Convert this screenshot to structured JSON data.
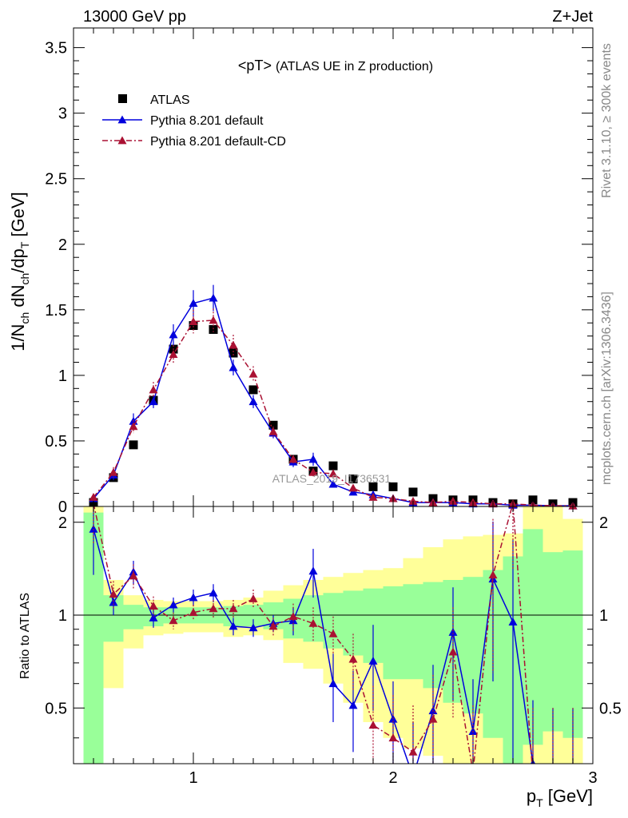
{
  "header": {
    "process": "13000 GeV pp",
    "channel": "Z+Jet",
    "side_top": "Rivet 3.1.10, ≥ 300k events",
    "side_bottom": "mcplots.cern.ch [arXiv:1306.3436]"
  },
  "chart_data": [
    {
      "type": "line",
      "title": "<pT> (ATLAS UE in Z production)",
      "title_main": "<pT>",
      "title_sub": "(ATLAS UE in Z production)",
      "watermark": "ATLAS_2019_I1736531",
      "ylabel": "1/N_ch dN_ch/dp_T [GeV]",
      "xlim": [
        0.4,
        3.0
      ],
      "ylim": [
        0,
        3.65
      ],
      "xticks": [
        "1",
        "2",
        "3"
      ],
      "yticks": [
        "0",
        "0.5",
        "1",
        "1.5",
        "2",
        "2.5",
        "3",
        "3.5"
      ],
      "legend_position": "top-left",
      "x": [
        0.5,
        0.6,
        0.7,
        0.8,
        0.9,
        1.0,
        1.1,
        1.2,
        1.3,
        1.4,
        1.5,
        1.6,
        1.7,
        1.8,
        1.9,
        2.0,
        2.1,
        2.2,
        2.3,
        2.4,
        2.5,
        2.6,
        2.7,
        2.8,
        2.9
      ],
      "series": [
        {
          "name": "ATLAS",
          "color": "#000000",
          "marker": "square",
          "values": [
            0.03,
            0.22,
            0.47,
            0.81,
            1.2,
            1.38,
            1.35,
            1.17,
            0.89,
            0.62,
            0.36,
            0.27,
            0.31,
            0.21,
            0.15,
            0.15,
            0.11,
            0.06,
            0.05,
            0.05,
            0.03,
            0.02,
            0.05,
            0.02,
            0.03
          ]
        },
        {
          "name": "Pythia 8.201 default",
          "color": "#0000dd",
          "marker": "triangle",
          "dash": "solid",
          "values": [
            0.06,
            0.24,
            0.65,
            0.8,
            1.31,
            1.55,
            1.59,
            1.06,
            0.8,
            0.56,
            0.34,
            0.36,
            0.17,
            0.11,
            0.09,
            0.06,
            0.03,
            0.03,
            0.03,
            0.02,
            0.02,
            0.01,
            0.01,
            0.005,
            0.005
          ],
          "errors": [
            0.02,
            0.04,
            0.06,
            0.05,
            0.08,
            0.1,
            0.1,
            0.06,
            0.05,
            0.04,
            0.04,
            0.05,
            0.02,
            0.02,
            0.02,
            0.02,
            0.01,
            0.01,
            0.01,
            0.01,
            0.01,
            0.01,
            0.01,
            0.005,
            0.005
          ]
        },
        {
          "name": "Pythia 8.201 default-CD",
          "color": "#aa1133",
          "marker": "triangle",
          "dash": "dashdot",
          "values": [
            0.07,
            0.26,
            0.61,
            0.89,
            1.16,
            1.41,
            1.42,
            1.23,
            1.01,
            0.57,
            0.36,
            0.26,
            0.25,
            0.14,
            0.07,
            0.06,
            0.04,
            0.03,
            0.04,
            0.03,
            0.02,
            0.02,
            0.01,
            0.005,
            0.005
          ],
          "errors": [
            0.02,
            0.04,
            0.05,
            0.06,
            0.07,
            0.09,
            0.09,
            0.08,
            0.06,
            0.04,
            0.03,
            0.03,
            0.03,
            0.02,
            0.02,
            0.02,
            0.01,
            0.01,
            0.01,
            0.01,
            0.01,
            0.01,
            0.01,
            0.005,
            0.005
          ]
        }
      ]
    },
    {
      "type": "line",
      "ylabel": "Ratio to ATLAS",
      "xlabel": "p_T [GeV]",
      "xlim": [
        0.4,
        3.0
      ],
      "ylim": [
        0.33,
        2.25
      ],
      "xticks": [
        "1",
        "2",
        "3"
      ],
      "yticks": [
        "0.5",
        "1",
        "2"
      ],
      "log_y": true,
      "reference_line": 1,
      "x": [
        0.5,
        0.6,
        0.7,
        0.8,
        0.9,
        1.0,
        1.1,
        1.2,
        1.3,
        1.4,
        1.5,
        1.6,
        1.7,
        1.8,
        1.9,
        2.0,
        2.1,
        2.2,
        2.3,
        2.4,
        2.5,
        2.6,
        2.7,
        2.8,
        2.9
      ],
      "bands": [
        {
          "name": "yellow",
          "color": "#ffff99",
          "low": [
            0.33,
            0.58,
            0.78,
            0.86,
            0.87,
            0.88,
            0.88,
            0.85,
            0.86,
            0.83,
            0.7,
            0.67,
            0.6,
            0.52,
            0.45,
            0.4,
            0.37,
            0.35,
            0.33,
            0.33,
            0.33,
            0.33,
            0.33,
            0.33,
            0.33
          ],
          "high": [
            2.3,
            1.3,
            1.16,
            1.12,
            1.11,
            1.11,
            1.11,
            1.12,
            1.14,
            1.2,
            1.25,
            1.3,
            1.33,
            1.37,
            1.4,
            1.42,
            1.53,
            1.66,
            1.76,
            1.8,
            1.82,
            1.84,
            2.3,
            2.3,
            2.05
          ]
        },
        {
          "name": "green",
          "color": "#99ff99",
          "low": [
            0.33,
            0.82,
            0.9,
            0.92,
            0.94,
            0.94,
            0.94,
            0.92,
            0.92,
            0.9,
            0.84,
            0.82,
            0.78,
            0.74,
            0.7,
            0.62,
            0.62,
            0.58,
            0.52,
            0.48,
            0.4,
            0.33,
            0.38,
            0.42,
            0.4
          ],
          "high": [
            2.15,
            1.16,
            1.08,
            1.06,
            1.06,
            1.06,
            1.06,
            1.07,
            1.08,
            1.1,
            1.13,
            1.16,
            1.18,
            1.2,
            1.22,
            1.24,
            1.26,
            1.28,
            1.3,
            1.33,
            1.4,
            1.55,
            1.9,
            1.6,
            1.62
          ]
        }
      ],
      "series": [
        {
          "name": "Pythia 8.201 default",
          "color": "#0000dd",
          "marker": "triangle",
          "dash": "solid",
          "values": [
            1.9,
            1.1,
            1.38,
            0.98,
            1.08,
            1.14,
            1.18,
            0.92,
            0.91,
            0.94,
            0.96,
            1.39,
            0.6,
            0.51,
            0.71,
            0.46,
            0.3,
            0.49,
            0.88,
            0.42,
            1.31,
            0.95,
            0.33,
            0.3,
            0.3
          ],
          "errors": [
            0.55,
            0.1,
            0.12,
            0.07,
            0.06,
            0.07,
            0.08,
            0.06,
            0.06,
            0.06,
            0.1,
            0.25,
            0.15,
            0.15,
            0.22,
            0.15,
            0.15,
            0.2,
            0.35,
            0.2,
            0.7,
            0.8,
            0.2,
            0.2,
            0.2
          ]
        },
        {
          "name": "Pythia 8.201 default-CD",
          "color": "#aa1133",
          "marker": "triangle",
          "dash": "dashdot",
          "values": [
            2.3,
            1.17,
            1.34,
            1.07,
            0.96,
            1.02,
            1.05,
            1.05,
            1.13,
            0.92,
            0.99,
            0.94,
            0.87,
            0.72,
            0.44,
            0.4,
            0.36,
            0.46,
            0.76,
            0.31,
            1.35,
            2.3,
            0.3,
            0.3,
            0.3
          ],
          "errors": [
            0.6,
            0.12,
            0.12,
            0.08,
            0.06,
            0.06,
            0.07,
            0.07,
            0.08,
            0.06,
            0.1,
            0.12,
            0.12,
            0.15,
            0.15,
            0.15,
            0.15,
            0.18,
            0.3,
            0.2,
            0.7,
            0.9,
            0.2,
            0.2,
            0.2
          ]
        }
      ]
    }
  ]
}
